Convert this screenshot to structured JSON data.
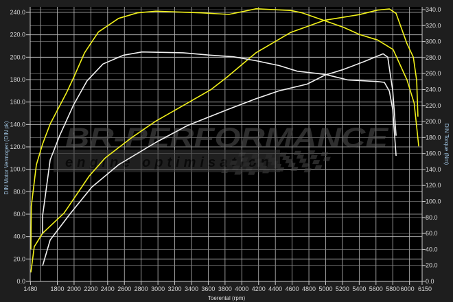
{
  "chart_data": {
    "type": "line",
    "title": "",
    "xlabel": "Toerental (rpm)",
    "ylabel_left": "DIN Motor Vermogen (DIN pk)",
    "ylabel_right": "DIN Torque (Nm)",
    "xlim": [
      1480,
      6150
    ],
    "ylim_left": [
      0,
      240
    ],
    "ylim_right": [
      0,
      340
    ],
    "grid": true,
    "x_ticks": [
      1480,
      1800,
      2000,
      2200,
      2400,
      2600,
      2800,
      3000,
      3200,
      3400,
      3600,
      3800,
      4000,
      4200,
      4400,
      4600,
      4800,
      5000,
      5200,
      5400,
      5600,
      5800,
      6000,
      6150
    ],
    "x_tick_labels": [
      "1480",
      "1800",
      "2000",
      "2200",
      "2400",
      "2600",
      "2800",
      "3000",
      "3200",
      "3400",
      "3600",
      "3800",
      "4000",
      "4200",
      "4400",
      "4600",
      "4800",
      "5000",
      "5200",
      "5400",
      "5600",
      "5800",
      "6000",
      "6150"
    ],
    "y_left_tick_labels": [
      "0.0",
      "20.0",
      "40.0",
      "60.0",
      "80.0",
      "100.0",
      "120.0",
      "140.0",
      "160.0",
      "180.0",
      "200.0",
      "220.0",
      "240.0"
    ],
    "y_right_tick_labels": [
      "0.0",
      "20.0",
      "40.0",
      "60.0",
      "80.0",
      "100.0",
      "120.0",
      "140.0",
      "160.0",
      "180.0",
      "200.0",
      "220.0",
      "240.0",
      "260.0",
      "280.0",
      "300.0",
      "320.0",
      "340.0"
    ],
    "series": [
      {
        "axis": "right",
        "color": "#f2f21a",
        "x": [
          1485,
          1490,
          1550,
          1625,
          1715,
          1910,
          1995,
          2125,
          2290,
          2530,
          2755,
          2975,
          3515,
          3845,
          4170,
          4580,
          4720,
          4990,
          5210,
          5400,
          5620,
          5805,
          5970,
          6055,
          6110
        ],
        "y": [
          40,
          94,
          146,
          172,
          197,
          236,
          255,
          286,
          312,
          329,
          336,
          338,
          336,
          334,
          341,
          339,
          336,
          326,
          318,
          309,
          302,
          290,
          252,
          223,
          169
        ]
      },
      {
        "axis": "left",
        "color": "#f2f21a",
        "x": [
          1485,
          1525,
          1625,
          1880,
          2180,
          2370,
          2700,
          2975,
          3350,
          3630,
          3820,
          4170,
          4580,
          4990,
          5400,
          5620,
          5760,
          5840,
          5970,
          6045,
          6085,
          6100
        ],
        "y": [
          8,
          31,
          43,
          61,
          94,
          110,
          129,
          143,
          159,
          171,
          182,
          204,
          222,
          233,
          238,
          242,
          243,
          239,
          212,
          200,
          179,
          147
        ]
      },
      {
        "axis": "right",
        "color": "#f0f0f0",
        "x": [
          1625,
          1626,
          1715,
          1830,
          1995,
          2155,
          2345,
          2590,
          2810,
          3300,
          3630,
          3900,
          4170,
          4445,
          4660,
          4990,
          5265,
          5620,
          5700,
          5760,
          5800,
          5840
        ],
        "y": [
          60,
          83,
          152,
          183,
          221,
          251,
          272,
          283,
          287,
          286,
          283,
          281,
          276,
          270,
          263,
          259,
          252,
          250,
          249,
          238,
          215,
          157
        ]
      },
      {
        "axis": "left",
        "color": "#f0f0f0",
        "x": [
          1625,
          1715,
          1960,
          2210,
          2530,
          2975,
          3350,
          3820,
          4170,
          4445,
          4780,
          4990,
          5210,
          5455,
          5685,
          5740,
          5800,
          5840
        ],
        "y": [
          14,
          37,
          61,
          84,
          104,
          124,
          139,
          153,
          163,
          170,
          176,
          184,
          189,
          196,
          203,
          200,
          170,
          130
        ]
      }
    ]
  },
  "watermark": {
    "brand": "BR-PERFORMANCE",
    "tagline": "engine optimisation"
  }
}
